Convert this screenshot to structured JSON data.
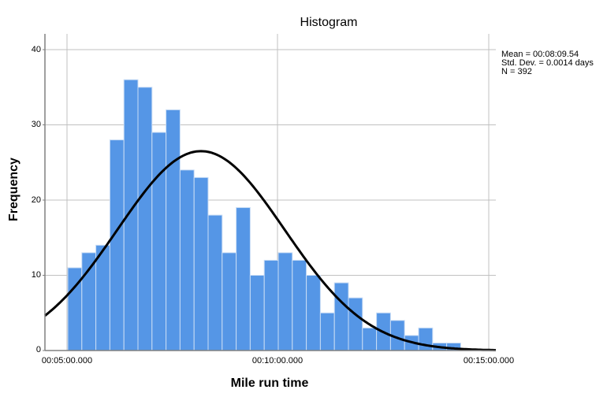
{
  "chart_data": {
    "type": "bar",
    "title": "Histogram",
    "xlabel": "Mile run time",
    "ylabel": "Frequency",
    "ylim": [
      0,
      42
    ],
    "yticks": [
      0,
      10,
      20,
      30,
      40
    ],
    "xticks": [
      "00:05:00.000",
      "00:10:00.000",
      "00:15:00.000"
    ],
    "grid": true,
    "bar_color": "#5596E6",
    "bar_edge_color": "#C8DCF5",
    "curve_color": "#000000",
    "overlay": "normal curve",
    "bins_start": "00:05:00.000",
    "categories": [
      "bin1",
      "bin2",
      "bin3",
      "bin4",
      "bin5",
      "bin6",
      "bin7",
      "bin8",
      "bin9",
      "bin10",
      "bin11",
      "bin12",
      "bin13",
      "bin14",
      "bin15",
      "bin16",
      "bin17",
      "bin18",
      "bin19",
      "bin20",
      "bin21",
      "bin22",
      "bin23",
      "bin24",
      "bin25",
      "bin26",
      "bin27",
      "bin28"
    ],
    "values": [
      11,
      13,
      14,
      28,
      36,
      35,
      29,
      32,
      24,
      23,
      18,
      13,
      19,
      10,
      12,
      13,
      12,
      10,
      5,
      9,
      7,
      3,
      5,
      4,
      2,
      3,
      1,
      1
    ],
    "legend": {
      "mean": "Mean = 00:08:09.54",
      "std": "Std. Dev. = 0.0014 days",
      "n": "N = 392"
    }
  }
}
